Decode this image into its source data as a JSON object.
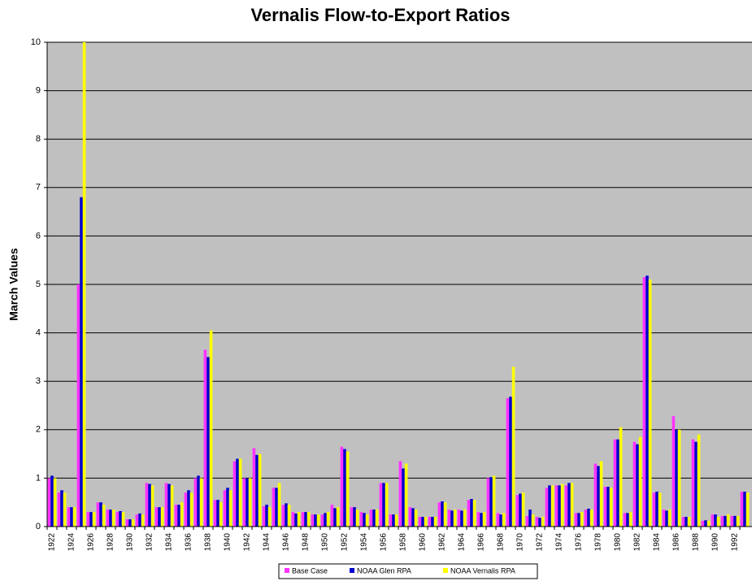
{
  "chart_data": {
    "type": "bar",
    "title": "Vernalis Flow-to-Export Ratios",
    "y_label": "March Values",
    "categories": [
      "1922",
      null,
      "1924",
      null,
      "1926",
      null,
      "1928",
      null,
      "1930",
      null,
      "1932",
      null,
      "1934",
      null,
      "1936",
      null,
      "1938",
      null,
      "1940",
      null,
      "1942",
      null,
      "1944",
      null,
      "1946",
      null,
      "1948",
      null,
      "1950",
      null,
      "1952",
      null,
      "1954",
      null,
      "1956",
      null,
      "1958",
      null,
      "1960",
      null,
      "1962",
      null,
      "1964",
      null,
      "1966",
      null,
      "1968",
      null,
      "1970",
      null,
      "1972",
      null,
      "1974",
      null,
      "1976",
      null,
      "1978",
      null,
      "1980",
      null,
      "1982",
      null,
      "1984",
      null,
      "1986",
      null,
      "1988",
      null,
      "1990",
      null,
      "1992",
      null
    ],
    "series": [
      {
        "name": "Base Case",
        "color": "#ff33ff",
        "values": [
          1.0,
          0.7,
          0.4,
          5.0,
          0.3,
          0.5,
          0.35,
          0.3,
          0.15,
          0.25,
          0.9,
          0.4,
          0.9,
          0.45,
          0.7,
          1.0,
          3.65,
          0.55,
          0.75,
          1.35,
          1.0,
          1.62,
          0.42,
          0.8,
          0.45,
          0.3,
          0.3,
          0.25,
          0.25,
          0.45,
          1.65,
          0.4,
          0.3,
          0.35,
          0.9,
          0.25,
          1.35,
          0.4,
          0.2,
          0.2,
          0.5,
          0.35,
          0.35,
          0.55,
          0.3,
          1.0,
          0.28,
          2.65,
          0.65,
          0.22,
          0.2,
          0.8,
          0.85,
          0.85,
          0.28,
          0.35,
          1.3,
          0.82,
          1.8,
          0.28,
          1.75,
          5.15,
          0.7,
          0.35,
          2.28,
          0.2,
          1.8,
          0.12,
          0.25,
          0.22,
          0.22,
          0.72
        ]
      },
      {
        "name": "NOAA Glen RPA",
        "color": "#0000cc",
        "values": [
          1.05,
          0.75,
          0.4,
          6.8,
          0.3,
          0.5,
          0.35,
          0.32,
          0.15,
          0.27,
          0.88,
          0.4,
          0.88,
          0.45,
          0.75,
          1.05,
          3.5,
          0.55,
          0.8,
          1.4,
          1.0,
          1.48,
          0.45,
          0.8,
          0.48,
          0.27,
          0.3,
          0.25,
          0.28,
          0.38,
          1.6,
          0.4,
          0.28,
          0.35,
          0.9,
          0.25,
          1.2,
          0.38,
          0.2,
          0.2,
          0.52,
          0.33,
          0.33,
          0.57,
          0.28,
          1.02,
          0.25,
          2.68,
          0.68,
          0.35,
          0.18,
          0.85,
          0.85,
          0.9,
          0.28,
          0.37,
          1.25,
          0.82,
          1.8,
          0.28,
          1.7,
          5.18,
          0.72,
          0.33,
          2.0,
          0.2,
          1.75,
          0.13,
          0.25,
          0.22,
          0.22,
          0.72
        ]
      },
      {
        "name": "NOAA Vernalis RPA",
        "color": "#ffff00",
        "values": [
          1.0,
          0.7,
          0.4,
          10.0,
          0.3,
          0.45,
          0.35,
          0.3,
          0.15,
          0.25,
          0.85,
          0.4,
          0.85,
          0.5,
          0.7,
          1.0,
          4.05,
          0.5,
          0.75,
          1.4,
          1.0,
          1.5,
          0.4,
          0.9,
          0.45,
          0.3,
          0.3,
          0.25,
          0.3,
          0.4,
          1.55,
          0.35,
          0.25,
          0.35,
          0.9,
          0.25,
          1.3,
          0.35,
          0.2,
          0.2,
          0.5,
          0.35,
          0.35,
          0.55,
          0.3,
          1.05,
          0.28,
          3.3,
          0.7,
          0.25,
          0.2,
          0.85,
          0.88,
          0.9,
          0.3,
          0.35,
          1.35,
          0.8,
          2.05,
          0.3,
          1.85,
          5.1,
          0.7,
          0.35,
          2.0,
          0.2,
          1.9,
          0.12,
          0.2,
          0.25,
          0.22,
          0.7
        ]
      }
    ],
    "ylim": [
      0,
      10
    ],
    "yticks": [
      0,
      1,
      2,
      3,
      4,
      5,
      6,
      7,
      8,
      9,
      10
    ],
    "grid": true,
    "legend": "bottom"
  }
}
